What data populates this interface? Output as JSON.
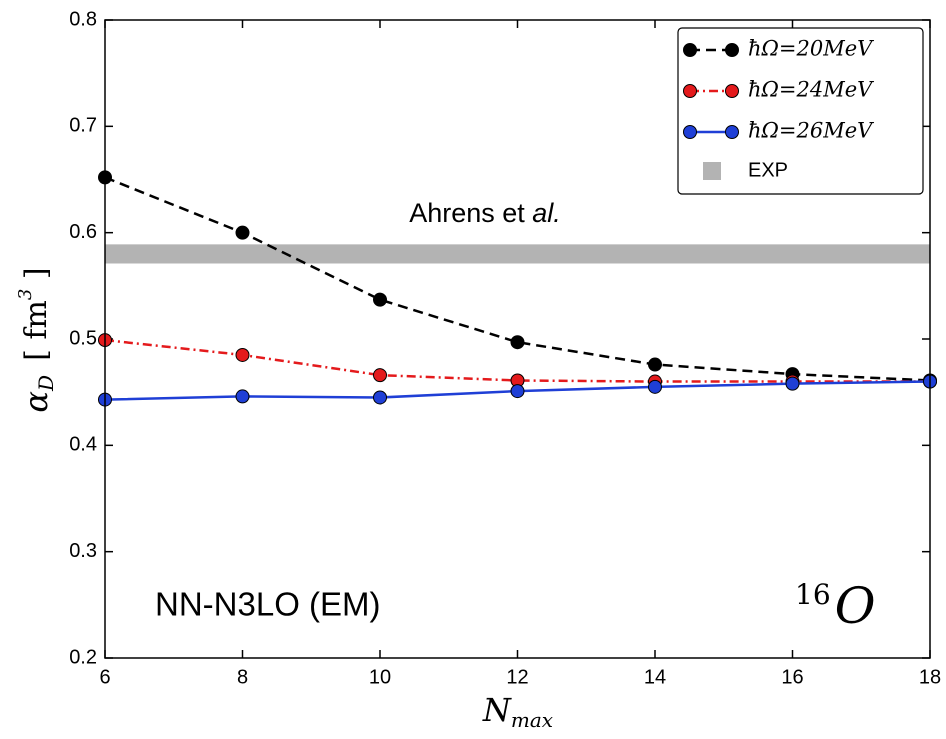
{
  "chart_data": {
    "type": "line",
    "x": [
      6,
      8,
      10,
      12,
      14,
      16,
      18
    ],
    "series": [
      {
        "name": "ħΩ=20MeV",
        "color": "#000000",
        "linestyle": "dashed",
        "values": [
          0.652,
          0.6,
          0.537,
          0.497,
          0.476,
          0.467,
          0.461
        ]
      },
      {
        "name": "ħΩ=24MeV",
        "color": "#e41a1c",
        "linestyle": "dashdot",
        "values": [
          0.499,
          0.485,
          0.466,
          0.461,
          0.46,
          0.46,
          0.46
        ]
      },
      {
        "name": "ħΩ=26MeV",
        "color": "#1f3fd6",
        "linestyle": "solid",
        "values": [
          0.443,
          0.446,
          0.445,
          0.451,
          0.455,
          0.458,
          0.46
        ]
      }
    ],
    "exp_band": {
      "name": "EXP",
      "range": [
        0.571,
        0.589
      ],
      "color": "#b3b3b3"
    },
    "xlim": [
      6,
      18
    ],
    "ylim": [
      0.2,
      0.8
    ],
    "xticks": [
      6,
      8,
      10,
      12,
      14,
      16,
      18
    ],
    "yticks": [
      0.2,
      0.3,
      0.4,
      0.5,
      0.6,
      0.7,
      0.8
    ],
    "x_label": [
      "N",
      "max"
    ],
    "y_label": [
      "α",
      "D",
      "[ fm",
      "3",
      " ]"
    ],
    "annotations": {
      "reference": [
        "Ahrens et ",
        "al."
      ],
      "interaction": "NN-N3LO (EM)",
      "nucleus": [
        "16",
        "O"
      ]
    },
    "legend": "upper right"
  }
}
